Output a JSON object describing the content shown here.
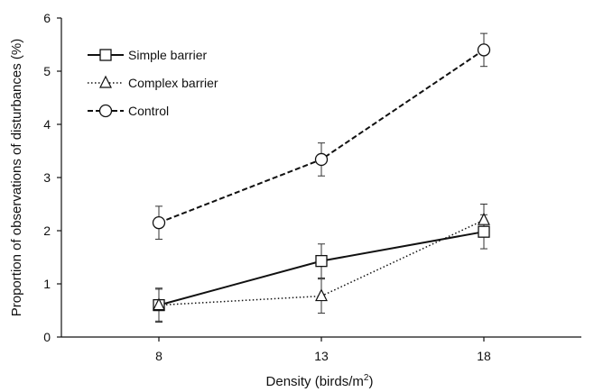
{
  "chart_data": {
    "type": "line",
    "xlabel_main": "Density (birds/m",
    "xlabel_sup": "2",
    "xlabel_end": ")",
    "ylabel": "Proportion of observations of disturbances (%)",
    "x": [
      8,
      13,
      18
    ],
    "xticks": [
      "8",
      "13",
      "18"
    ],
    "xlim": [
      5,
      21
    ],
    "ylim": [
      0,
      6
    ],
    "yticks": [
      "0",
      "1",
      "2",
      "3",
      "4",
      "5",
      "6"
    ],
    "grid": false,
    "legend_position": "top-left",
    "series": [
      {
        "name": "Simple barrier",
        "marker": "square",
        "line": "solid",
        "values": [
          0.6,
          1.43,
          1.98
        ],
        "errors": [
          0.32,
          0.32,
          0.32
        ]
      },
      {
        "name": "Complex barrier",
        "marker": "triangle",
        "line": "dotted",
        "values": [
          0.6,
          0.77,
          2.2
        ],
        "errors": [
          0.3,
          0.32,
          0.3
        ]
      },
      {
        "name": "Control",
        "marker": "circle",
        "line": "dashed",
        "values": [
          2.15,
          3.34,
          5.4
        ],
        "errors": [
          0.31,
          0.31,
          0.31
        ]
      }
    ]
  }
}
